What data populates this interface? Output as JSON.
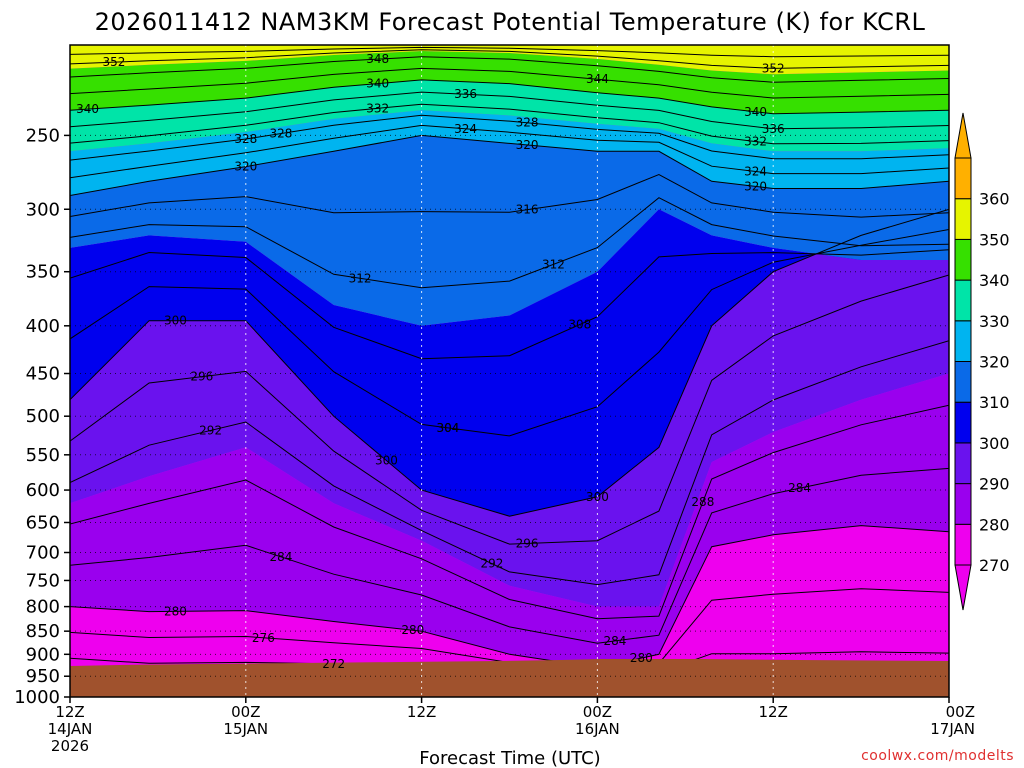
{
  "chart_data": {
    "type": "heatmap",
    "title": "2026011412 NAM3KM Forecast Potential Temperature (K) for KCRL",
    "xlabel": "Forecast Time (UTC)",
    "ylabel": "",
    "y_scale": "log",
    "y_inverted": true,
    "ylim": [
      1000,
      200
    ],
    "y_ticks": [
      250,
      300,
      350,
      400,
      450,
      500,
      550,
      600,
      650,
      700,
      750,
      800,
      850,
      900,
      950,
      1000
    ],
    "x_ticks": [
      {
        "line1": "12Z",
        "line2": "14JAN",
        "line3": "2026"
      },
      {
        "line1": "00Z",
        "line2": "15JAN",
        "line3": ""
      },
      {
        "line1": "12Z",
        "line2": "",
        "line3": ""
      },
      {
        "line1": "00Z",
        "line2": "16JAN",
        "line3": ""
      },
      {
        "line1": "12Z",
        "line2": "",
        "line3": ""
      },
      {
        "line1": "00Z",
        "line2": "17JAN",
        "line3": ""
      }
    ],
    "colorbar_ticks": [
      270,
      280,
      290,
      300,
      310,
      320,
      330,
      340,
      350,
      360
    ],
    "colorbar_colors": [
      "#ee00ee",
      "#9a00ee",
      "#6a12ee",
      "#0000ee",
      "#0a6ae8",
      "#00b4f0",
      "#00e4a8",
      "#36e000",
      "#e6f400",
      "#ffb000"
    ],
    "contour_labels": [
      "352",
      "348",
      "340",
      "344",
      "352",
      "340",
      "336",
      "340",
      "336",
      "332",
      "328",
      "332",
      "328",
      "324",
      "328",
      "320",
      "324",
      "320",
      "316",
      "320",
      "312",
      "312",
      "308",
      "304",
      "300",
      "296",
      "304",
      "300",
      "292",
      "300",
      "288",
      "284",
      "296",
      "292",
      "280",
      "284",
      "276",
      "280",
      "272",
      "284",
      "280"
    ],
    "credit": "coolwx.com/modelts"
  }
}
